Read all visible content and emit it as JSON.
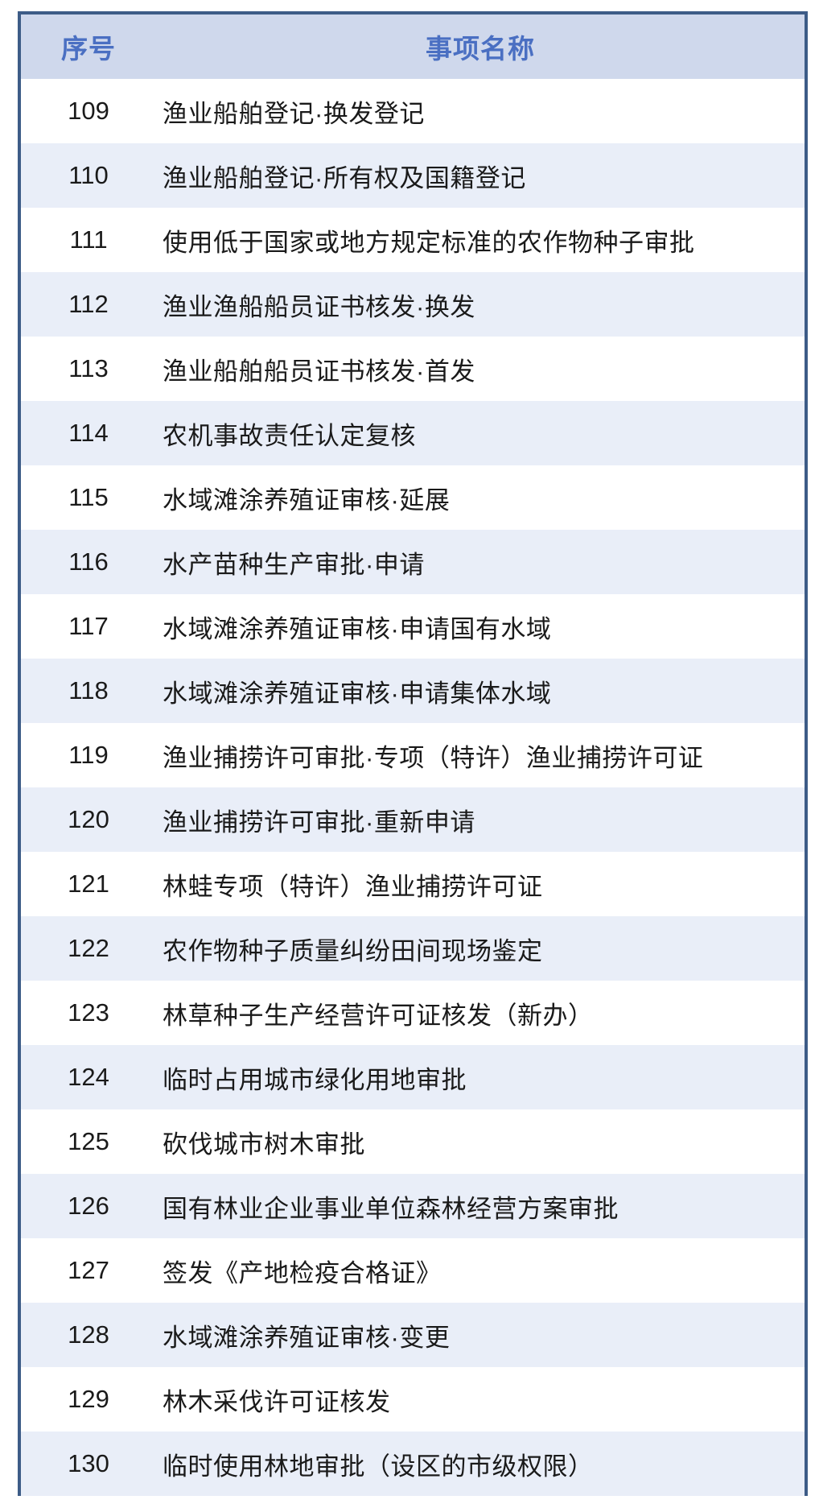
{
  "table": {
    "headers": {
      "number": "序号",
      "name": "事项名称"
    },
    "rows": [
      {
        "number": "109",
        "name": "渔业船舶登记·换发登记"
      },
      {
        "number": "110",
        "name": "渔业船舶登记·所有权及国籍登记"
      },
      {
        "number": "111",
        "name": "使用低于国家或地方规定标准的农作物种子审批"
      },
      {
        "number": "112",
        "name": "渔业渔船船员证书核发·换发"
      },
      {
        "number": "113",
        "name": "渔业船舶船员证书核发·首发"
      },
      {
        "number": "114",
        "name": "农机事故责任认定复核"
      },
      {
        "number": "115",
        "name": "水域滩涂养殖证审核·延展"
      },
      {
        "number": "116",
        "name": "水产苗种生产审批·申请"
      },
      {
        "number": "117",
        "name": "水域滩涂养殖证审核·申请国有水域"
      },
      {
        "number": "118",
        "name": "水域滩涂养殖证审核·申请集体水域"
      },
      {
        "number": "119",
        "name": "渔业捕捞许可审批·专项（特许）渔业捕捞许可证"
      },
      {
        "number": "120",
        "name": "渔业捕捞许可审批·重新申请"
      },
      {
        "number": "121",
        "name": "林蛙专项（特许）渔业捕捞许可证"
      },
      {
        "number": "122",
        "name": "农作物种子质量纠纷田间现场鉴定"
      },
      {
        "number": "123",
        "name": "林草种子生产经营许可证核发（新办）"
      },
      {
        "number": "124",
        "name": "临时占用城市绿化用地审批"
      },
      {
        "number": "125",
        "name": "砍伐城市树木审批"
      },
      {
        "number": "126",
        "name": "国有林业企业事业单位森林经营方案审批"
      },
      {
        "number": "127",
        "name": "签发《产地检疫合格证》"
      },
      {
        "number": "128",
        "name": "水域滩涂养殖证审核·变更"
      },
      {
        "number": "129",
        "name": "林木采伐许可证核发"
      },
      {
        "number": "130",
        "name": "临时使用林地审批（设区的市级权限）"
      }
    ],
    "colors": {
      "border": "#3d5c87",
      "header_bg": "#cfd8ec",
      "header_text": "#4a6fc2",
      "row_even_bg": "#e9eef8",
      "row_odd_bg": "#ffffff",
      "body_text": "#1a1a1a"
    }
  }
}
